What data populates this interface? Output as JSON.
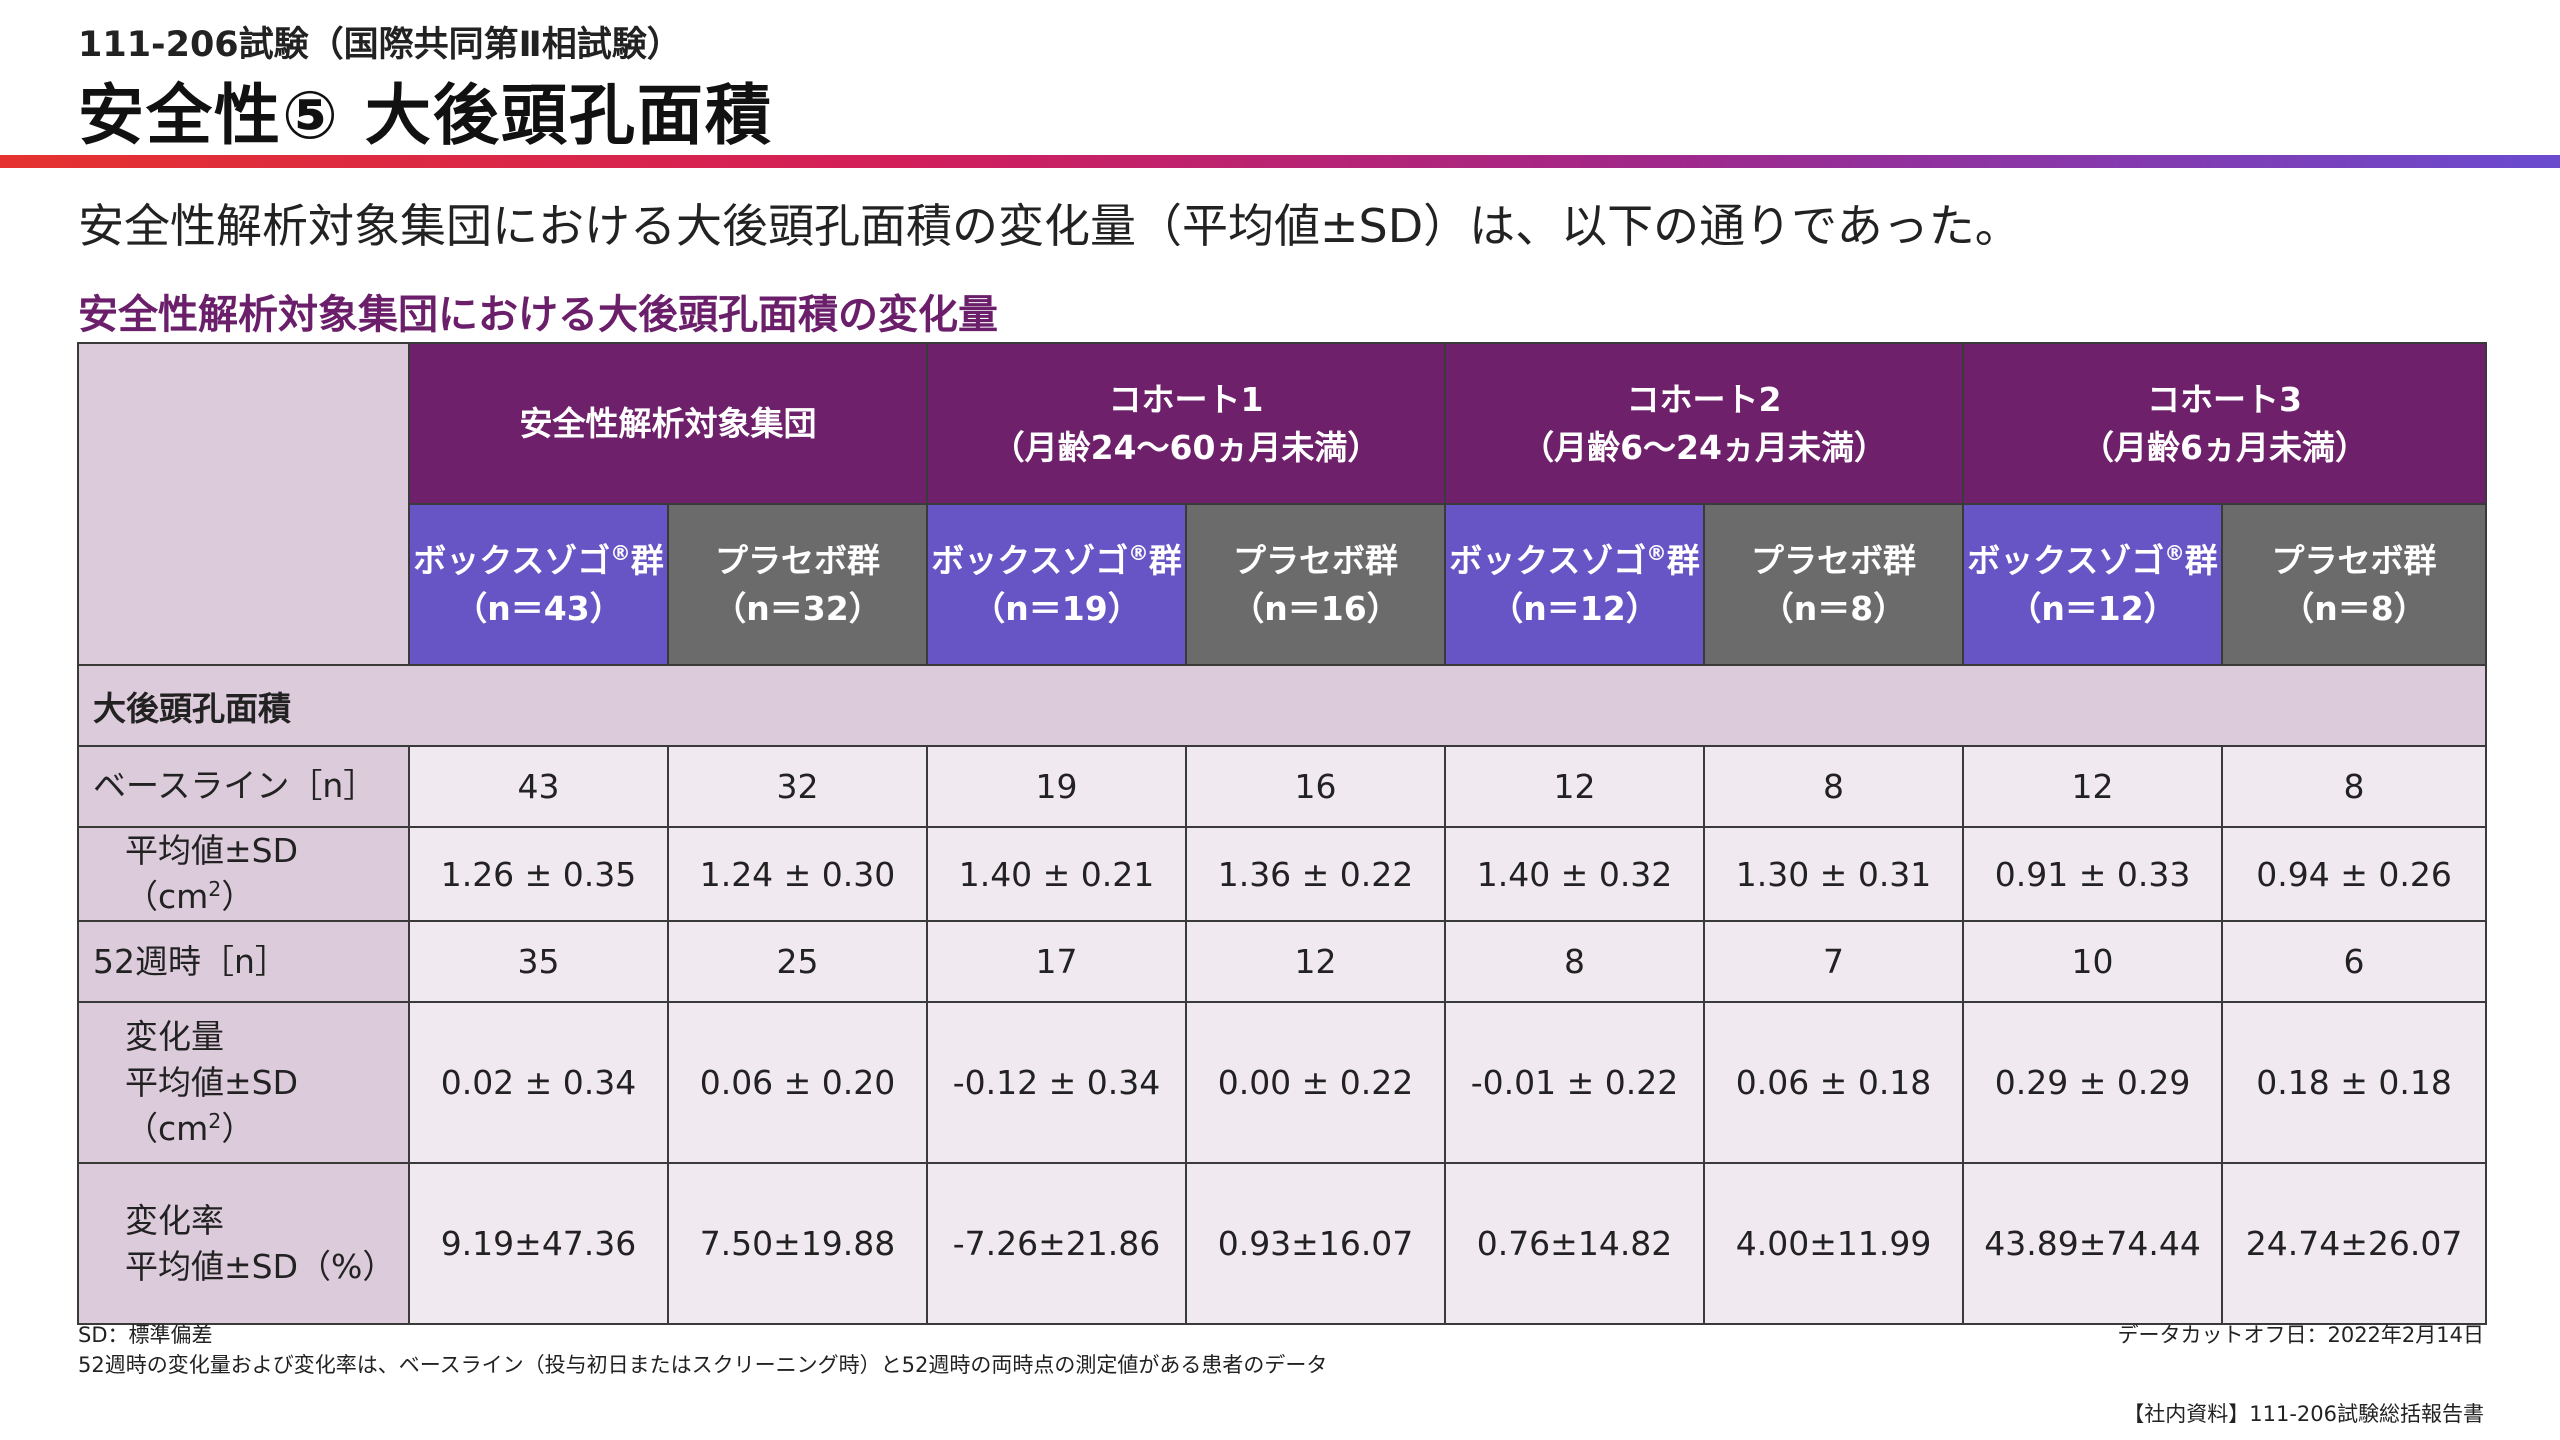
{
  "header": {
    "study_label": "111-206試験（国際共同第Ⅱ相試験）",
    "title": "安全性⑤ 大後頭孔面積",
    "accent_colors": [
      "#e5322f",
      "#d21f5a",
      "#a0288a",
      "#6a4bcf"
    ]
  },
  "summary": "安全性解析対象集団における大後頭孔面積の変化量（平均値±SD）は、以下の通りであった。",
  "table": {
    "title": "安全性解析対象集団における大後頭孔面積の変化量",
    "colors": {
      "cohort_header": "#6f206b",
      "drug_header": "#6755c6",
      "placebo_header": "#6b6b6b",
      "label_bg": "#dccbdb",
      "value_bg": "#f1e9f0"
    },
    "cohorts": [
      {
        "line1": "安全性解析対象集団",
        "line2": ""
      },
      {
        "line1": "コホート1",
        "line2": "（月齢24〜60ヵ月未満）"
      },
      {
        "line1": "コホート2",
        "line2": "（月齢6〜24ヵ月未満）"
      },
      {
        "line1": "コホート3",
        "line2": "（月齢6ヵ月未満）"
      }
    ],
    "groups": [
      {
        "name": "ボックスゾゴ",
        "reg": "®",
        "suffix": "群",
        "n": "（n＝43）"
      },
      {
        "name": "プラセボ群",
        "reg": "",
        "suffix": "",
        "n": "（n＝32）"
      },
      {
        "name": "ボックスゾゴ",
        "reg": "®",
        "suffix": "群",
        "n": "（n＝19）"
      },
      {
        "name": "プラセボ群",
        "reg": "",
        "suffix": "",
        "n": "（n＝16）"
      },
      {
        "name": "ボックスゾゴ",
        "reg": "®",
        "suffix": "群",
        "n": "（n＝12）"
      },
      {
        "name": "プラセボ群",
        "reg": "",
        "suffix": "",
        "n": "（n＝8）"
      },
      {
        "name": "ボックスゾゴ",
        "reg": "®",
        "suffix": "群",
        "n": "（n＝12）"
      },
      {
        "name": "プラセボ群",
        "reg": "",
        "suffix": "",
        "n": "（n＝8）"
      }
    ],
    "section_label": "大後頭孔面積",
    "rows": [
      {
        "label1": "ベースライン［n］",
        "label2": "",
        "sup": "",
        "label_end": "",
        "indent": false,
        "values": [
          "43",
          "32",
          "19",
          "16",
          "12",
          "8",
          "12",
          "8"
        ]
      },
      {
        "label1": "平均値±SD（cm",
        "label2": "",
        "sup": "2",
        "label_end": "）",
        "indent": true,
        "values": [
          "1.26 ± 0.35",
          "1.24 ± 0.30",
          "1.40 ± 0.21",
          "1.36 ± 0.22",
          "1.40 ± 0.32",
          "1.30 ± 0.31",
          "0.91 ± 0.33",
          "0.94 ± 0.26"
        ]
      },
      {
        "label1": "52週時［n］",
        "label2": "",
        "sup": "",
        "label_end": "",
        "indent": false,
        "values": [
          "35",
          "25",
          "17",
          "12",
          "8",
          "7",
          "10",
          "6"
        ]
      },
      {
        "label1": "変化量",
        "label2": "平均値±SD（cm",
        "sup": "2",
        "label_end": "）",
        "indent": true,
        "values": [
          "0.02 ± 0.34",
          "0.06 ± 0.20",
          "-0.12 ± 0.34",
          "0.00 ± 0.22",
          "-0.01 ± 0.22",
          "0.06 ± 0.18",
          "0.29 ± 0.29",
          "0.18 ± 0.18"
        ]
      },
      {
        "label1": "変化率",
        "label2": "平均値±SD（%）",
        "sup": "",
        "label_end": "",
        "indent": true,
        "values": [
          "9.19±47.36",
          "7.50±19.88",
          "-7.26±21.86",
          "0.93±16.07",
          "0.76±14.82",
          "4.00±11.99",
          "43.89±74.44",
          "24.74±26.07"
        ]
      }
    ]
  },
  "footnotes": {
    "abbr": "SD：標準偏差",
    "note": "52週時の変化量および変化率は、ベースライン（投与初日またはスクリーニング時）と52週時の両時点の測定値がある患者のデータ",
    "cutoff": "データカットオフ日：2022年2月14日",
    "source": "【社内資料】111-206試験総括報告書"
  }
}
